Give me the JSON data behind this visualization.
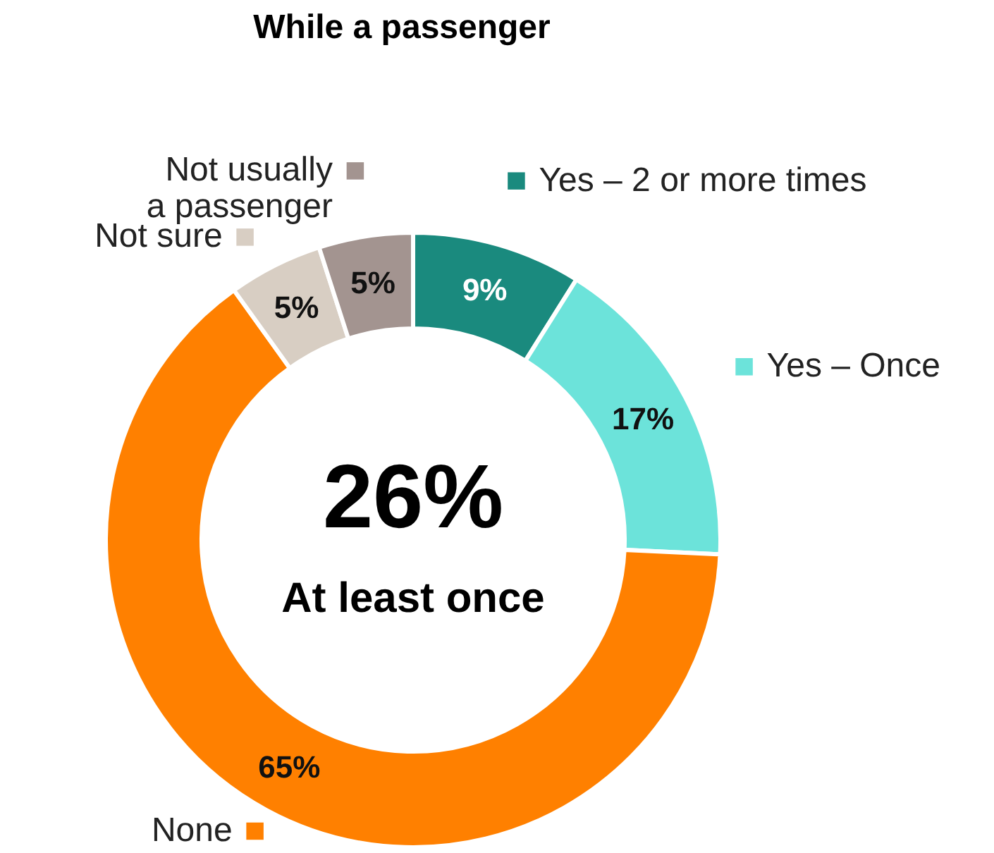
{
  "chart_data": {
    "type": "donut",
    "title": "While a passenger",
    "categories": [
      "Yes – 2 or more times",
      "Yes – Once",
      "None",
      "Not sure",
      "Not usually\na passenger"
    ],
    "values": [
      9,
      17,
      65,
      5,
      5
    ],
    "colors": [
      "#1a8a7e",
      "#6ce3da",
      "#ff8000",
      "#d8cec3",
      "#a39490"
    ],
    "value_labels": [
      "9%",
      "17%",
      "65%",
      "5%",
      "5%"
    ],
    "annotations": [
      "26%",
      "At least once"
    ],
    "legend": "left"
  }
}
